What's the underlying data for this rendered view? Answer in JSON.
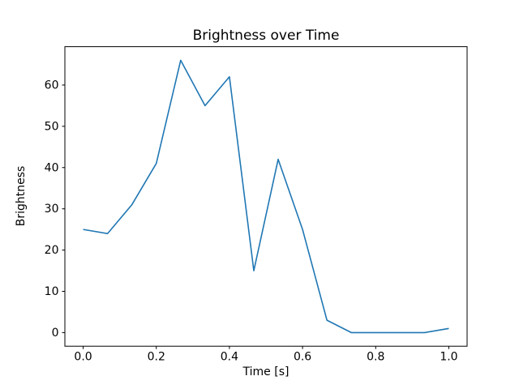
{
  "chart_data": {
    "type": "line",
    "title": "Brightness over Time",
    "xlabel": "Time [s]",
    "ylabel": "Brightness",
    "x": [
      0.0,
      0.0667,
      0.1333,
      0.2,
      0.2667,
      0.3333,
      0.4,
      0.4667,
      0.5333,
      0.6,
      0.6667,
      0.7333,
      0.8,
      0.8667,
      0.9333,
      1.0
    ],
    "values": [
      25,
      24,
      31,
      41,
      66,
      55,
      62,
      15,
      42,
      25,
      3,
      0,
      0,
      0,
      0,
      1
    ],
    "xlim": [
      -0.05,
      1.05
    ],
    "ylim": [
      -3.3,
      69.3
    ],
    "xticks": [
      0.0,
      0.2,
      0.4,
      0.6,
      0.8,
      1.0
    ],
    "xtick_labels": [
      "0.0",
      "0.2",
      "0.4",
      "0.6",
      "0.8",
      "1.0"
    ],
    "yticks": [
      0,
      10,
      20,
      30,
      40,
      50,
      60
    ],
    "ytick_labels": [
      "0",
      "10",
      "20",
      "30",
      "40",
      "50",
      "60"
    ],
    "line_color": "#1f77b4",
    "axis_color": "#000000",
    "grid": false,
    "legend": "none"
  }
}
